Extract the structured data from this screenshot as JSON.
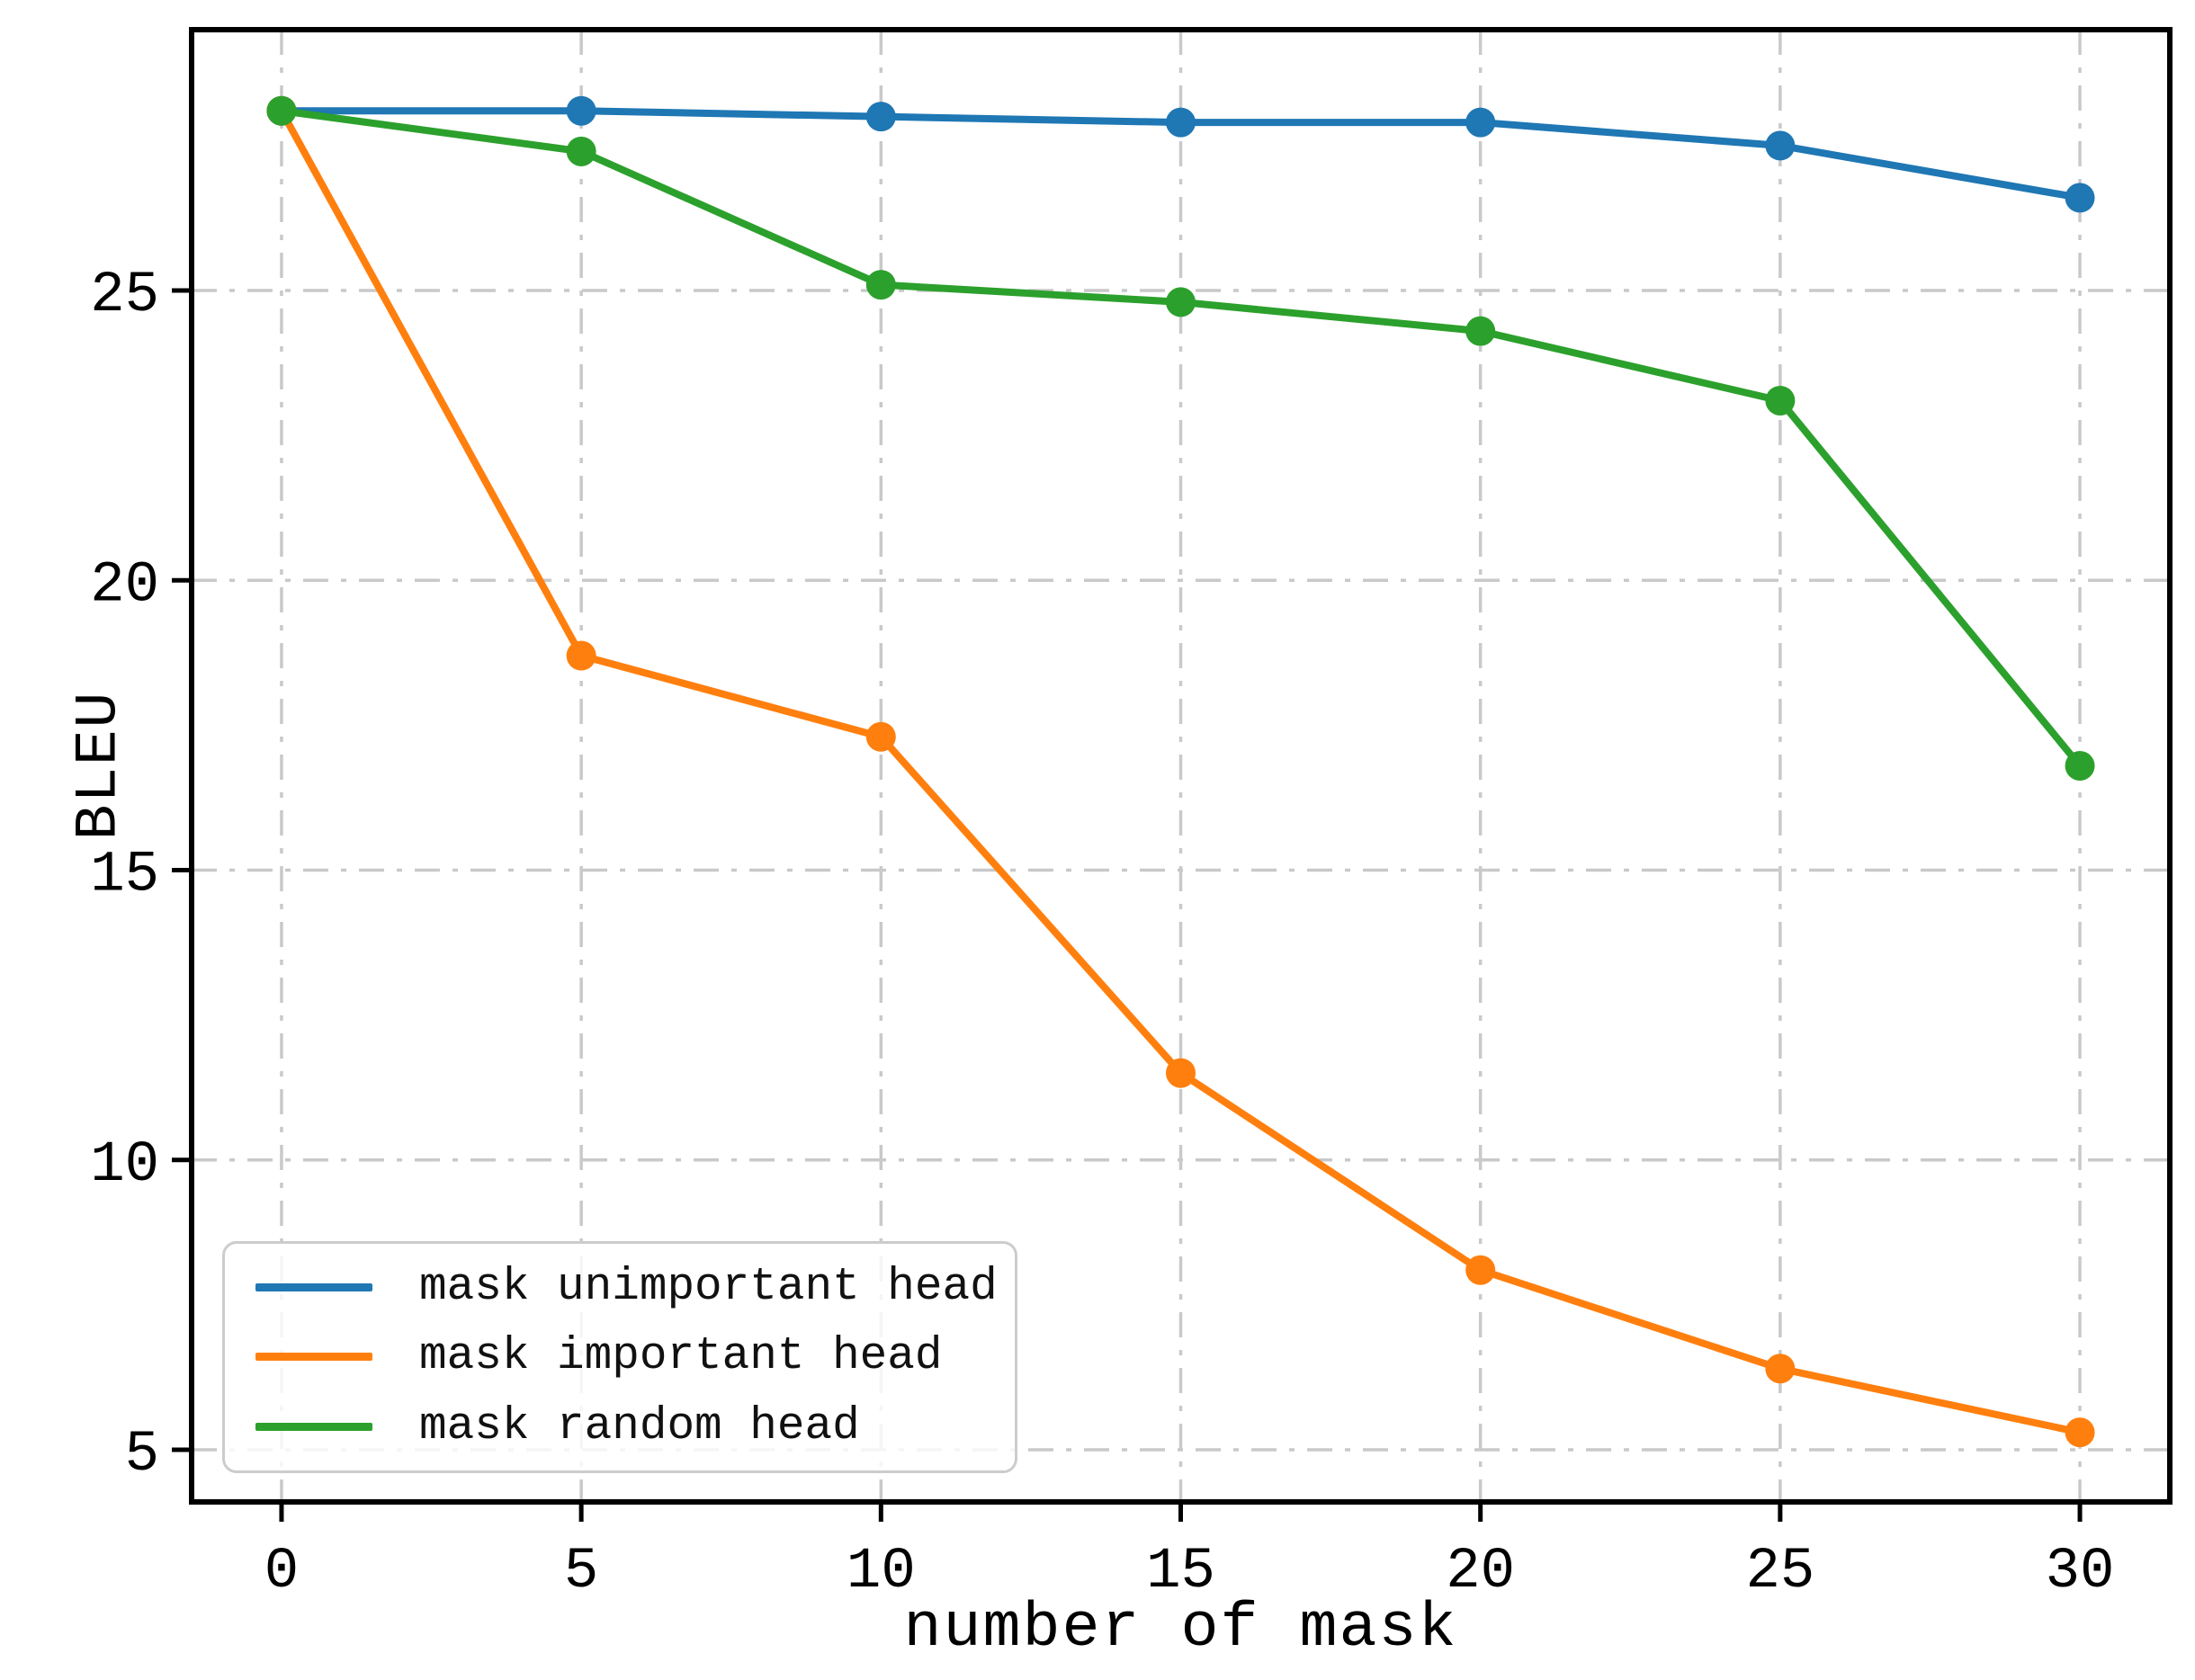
{
  "chart_data": {
    "type": "line",
    "title": "",
    "xlabel": "number of mask",
    "ylabel": "BLEU",
    "x": [
      0,
      5,
      10,
      15,
      20,
      25,
      30
    ],
    "series": [
      {
        "name": "mask unimportant head",
        "color": "#1f77b4",
        "values": [
          28.1,
          28.1,
          28.0,
          27.9,
          27.9,
          27.5,
          26.6
        ]
      },
      {
        "name": "mask important head",
        "color": "#ff7f0e",
        "values": [
          28.1,
          18.7,
          17.3,
          11.5,
          8.1,
          6.4,
          5.3
        ]
      },
      {
        "name": "mask random head",
        "color": "#2ca02c",
        "values": [
          28.1,
          27.4,
          25.1,
          24.8,
          24.3,
          23.1,
          16.8
        ]
      }
    ],
    "x_ticks": [
      "0",
      "5",
      "10",
      "15",
      "20",
      "25",
      "30"
    ],
    "y_ticks": [
      "5",
      "10",
      "15",
      "20",
      "25"
    ],
    "x_tick_values": [
      0,
      5,
      10,
      15,
      20,
      25,
      30
    ],
    "y_tick_values": [
      5,
      10,
      15,
      20,
      25
    ],
    "xlim": [
      -1.5,
      31.5
    ],
    "ylim": [
      4.1,
      29.5
    ],
    "grid": true,
    "grid_color": "#c9c9c9",
    "grid_style": "dashdot",
    "legend_position": "lower-left",
    "marker": "o",
    "background": "#ffffff",
    "axis_color": "#000000"
  }
}
